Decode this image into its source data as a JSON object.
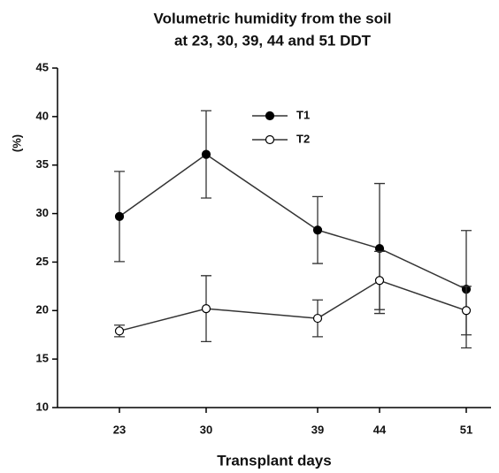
{
  "chart_data": {
    "type": "line",
    "title": [
      "Volumetric humidity from the soil",
      "at 23, 30, 39, 44 and 51 DDT"
    ],
    "x_label": "Transplant days",
    "y_label": "(%)",
    "x": [
      23,
      30,
      39,
      44,
      51
    ],
    "series": [
      {
        "name": "T1",
        "color": "#333333",
        "marker_fill": "#000000",
        "values": [
          29.7,
          36.1,
          28.3,
          26.4,
          22.2
        ],
        "errors": [
          4.65,
          4.5,
          3.45,
          6.7,
          6.05
        ]
      },
      {
        "name": "T2",
        "color": "#333333",
        "marker_fill": "#ffffff",
        "values": [
          17.9,
          20.2,
          19.2,
          23.1,
          20.0
        ],
        "errors": [
          0.6,
          3.4,
          1.9,
          3.0,
          2.5
        ]
      }
    ],
    "xlim": [
      18,
      53
    ],
    "xticks": [
      23,
      30,
      39,
      44,
      51
    ],
    "ylim": [
      10,
      45
    ],
    "yticks": [
      10,
      15,
      20,
      25,
      30,
      35,
      40,
      45
    ],
    "grid": false,
    "legend": "upper center"
  }
}
